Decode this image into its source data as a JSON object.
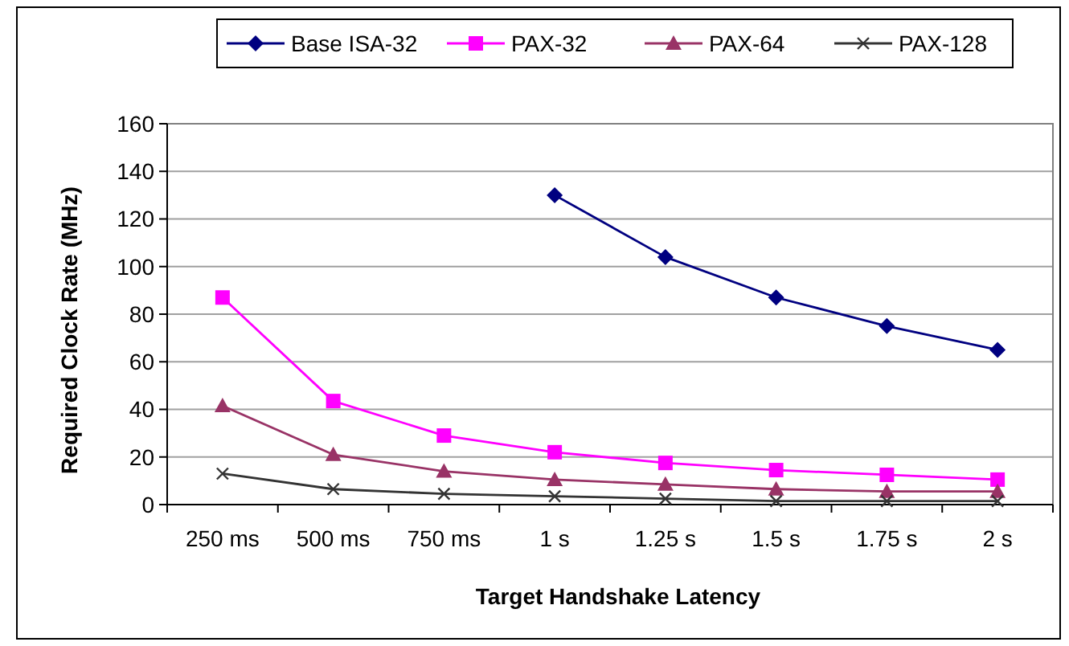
{
  "chart_data": {
    "type": "line",
    "xlabel": "Target Handshake Latency",
    "ylabel": "Required Clock Rate (MHz)",
    "categories": [
      "250 ms",
      "500 ms",
      "750 ms",
      "1 s",
      "1.25 s",
      "1.5 s",
      "1.75 s",
      "2 s"
    ],
    "series": [
      {
        "name": "Base ISA-32",
        "color": "#000080",
        "marker": "diamond",
        "values": [
          null,
          null,
          null,
          130,
          104,
          87,
          75,
          65
        ]
      },
      {
        "name": "PAX-32",
        "color": "#ff00ff",
        "marker": "square",
        "values": [
          87,
          43.5,
          29,
          22,
          17.5,
          14.5,
          12.5,
          10.5
        ]
      },
      {
        "name": "PAX-64",
        "color": "#993366",
        "marker": "triangle",
        "values": [
          41.5,
          21,
          14,
          10.5,
          8.5,
          6.5,
          5.5,
          5.5
        ]
      },
      {
        "name": "PAX-128",
        "color": "#333333",
        "marker": "cross",
        "values": [
          13,
          6.5,
          4.5,
          3.5,
          2.5,
          1.5,
          1.5,
          1.5
        ]
      }
    ],
    "ylim": [
      0,
      160
    ],
    "yticks": [
      0,
      20,
      40,
      60,
      80,
      100,
      120,
      140,
      160
    ],
    "grid": "y",
    "legend": "top"
  }
}
